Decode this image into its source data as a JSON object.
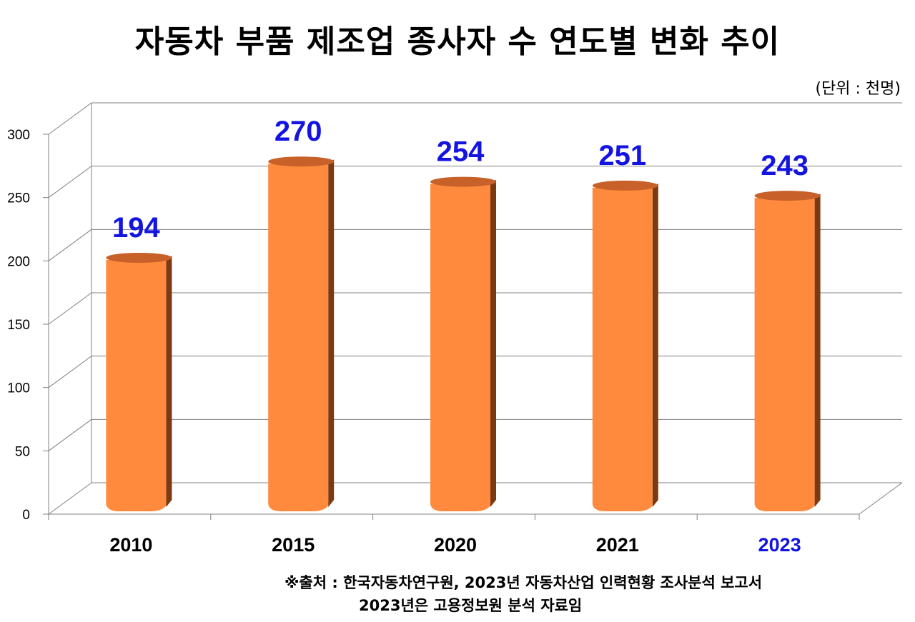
{
  "title": "자동차 부품 제조업 종사자 수 연도별 변화 추이",
  "unit": "(단위 : 천명)",
  "source": {
    "line1": "※출처 : 한국자동차연구원, 2023년 자동차산업 인력현황 조사분석 보고서",
    "line2": "2023년은 고용정보원 분석 자료임"
  },
  "colors": {
    "bar_front": "#FF8A3D",
    "bar_top": "#C8602A",
    "bar_side": "#7A3A12",
    "value_label": "#1414E0",
    "highlight_category": "#1414E0"
  },
  "chart_data": {
    "type": "bar",
    "title": "자동차 부품 제조업 종사자 수 연도별 변화 추이",
    "categories": [
      "2010",
      "2015",
      "2020",
      "2021",
      "2023"
    ],
    "values": [
      194,
      270,
      254,
      251,
      243
    ],
    "value_labels": [
      "194",
      "270",
      "254",
      "251",
      "243"
    ],
    "ylim": [
      0,
      300
    ],
    "yticks": [
      0,
      50,
      100,
      150,
      200,
      250,
      300
    ],
    "ytick_labels": [
      "0",
      "50",
      "100",
      "150",
      "200",
      "250",
      "300"
    ],
    "highlighted_category": "2023",
    "grid": true,
    "style": "3d-cylinder"
  }
}
